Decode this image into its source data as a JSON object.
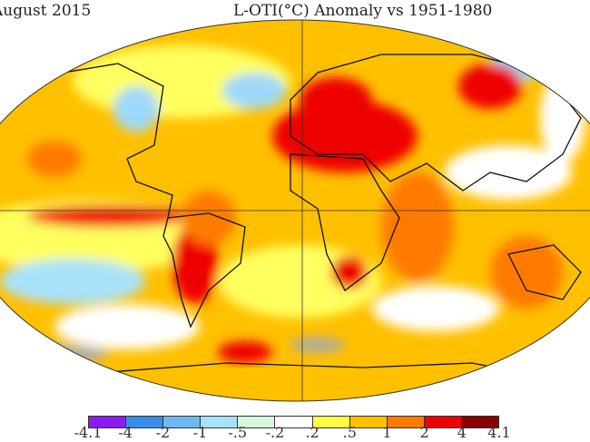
{
  "title_left": "August 2015",
  "title_right": "L-OTI(°C) Anomaly vs 1951-1980",
  "colorbar": {
    "labels": [
      "-4.1",
      "-4",
      "-2",
      "-1",
      "-.5",
      "-.2",
      ".2",
      ".5",
      "1",
      "2",
      "4",
      "4.1"
    ],
    "colors": [
      "#8a1cf0",
      "#3a8ee8",
      "#6cbaf0",
      "#a8e2fa",
      "#d6f8d8",
      "#ffffff",
      "#ffff40",
      "#ffc000",
      "#ff7a00",
      "#ee0000",
      "#8a0000"
    ]
  },
  "colors": {
    "ocean_base": "#ffc000",
    "land_outline": "#111111"
  }
}
